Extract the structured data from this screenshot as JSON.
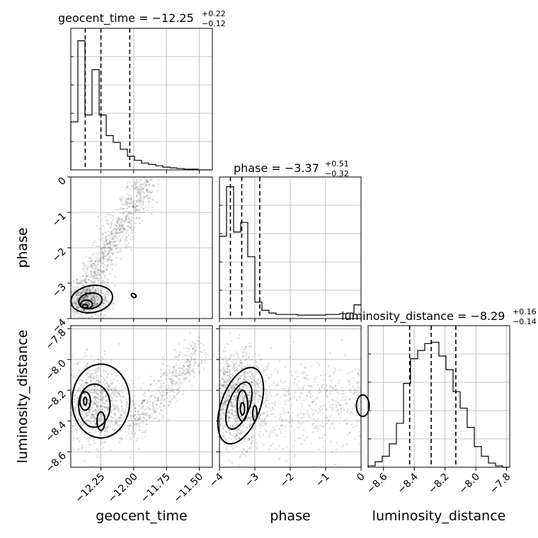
{
  "parameters": [
    "geocent_time",
    "phase",
    "luminosity_distance"
  ],
  "axis_labels": {
    "geocent_time": "geocent_time",
    "phase": "phase",
    "luminosity_distance": "luminosity_distance"
  },
  "titles": {
    "geocent_time": {
      "prefix": "geocent_time = −12.25",
      "plus": "+0.22",
      "minus": "−0.12"
    },
    "phase": {
      "prefix": "phase = −3.37",
      "plus": "+0.51",
      "minus": "−0.32"
    },
    "luminosity_distance": {
      "prefix": "luminosity_distance = −8.29",
      "plus": "+0.16",
      "minus": "−0.14"
    }
  },
  "tick_labels": {
    "geocent_time": [
      "−12.25",
      "−12.00",
      "−11.75",
      "−11.50"
    ],
    "phase": [
      "−4",
      "−3",
      "−2",
      "−1",
      "0"
    ],
    "luminosity_distance_x": [
      "−8.6",
      "−8.4",
      "−8.2",
      "−8.0",
      "−7.8"
    ],
    "luminosity_distance_y": [
      "−7.8",
      "−8.0",
      "−8.2",
      "−8.4",
      "−8.6"
    ]
  },
  "chart_data": {
    "type": "corner",
    "ranges": {
      "geocent_time": [
        -12.48,
        -11.4
      ],
      "phase": [
        -4.0,
        0.0
      ],
      "luminosity_distance": [
        -8.7,
        -7.78
      ]
    },
    "ticks": {
      "geocent_time": [
        -12.25,
        -12.0,
        -11.75,
        -11.5
      ],
      "phase": [
        -4,
        -3,
        -2,
        -1,
        0
      ],
      "luminosity_distance": [
        -8.6,
        -8.4,
        -8.2,
        -8.0,
        -7.8
      ]
    },
    "marginals": {
      "geocent_time": {
        "edges_start": -12.48,
        "bin_width": 0.054,
        "counts": [
          0.35,
          0.94,
          0.4,
          0.73,
          0.4,
          0.25,
          0.2,
          0.15,
          0.1,
          0.07,
          0.05,
          0.04,
          0.03,
          0.02,
          0.015,
          0.01,
          0.005,
          0.005,
          0.0,
          0.0
        ],
        "quantiles": [
          -12.37,
          -12.25,
          -12.03
        ]
      },
      "phase": {
        "edges_start": -4.0,
        "bin_width": 0.2,
        "counts": [
          0.6,
          0.96,
          0.63,
          0.7,
          0.45,
          0.12,
          0.06,
          0.04,
          0.03,
          0.03,
          0.03,
          0.025,
          0.025,
          0.025,
          0.025,
          0.03,
          0.03,
          0.035,
          0.04,
          0.1
        ],
        "quantiles": [
          -3.69,
          -3.37,
          -2.86
        ]
      },
      "luminosity_distance": {
        "edges_start": -8.7,
        "bin_width": 0.046,
        "counts": [
          0.01,
          0.04,
          0.08,
          0.17,
          0.32,
          0.61,
          0.79,
          0.85,
          0.9,
          0.91,
          0.81,
          0.71,
          0.55,
          0.43,
          0.29,
          0.15,
          0.08,
          0.03,
          0.01,
          0.0
        ],
        "quantiles": [
          -8.43,
          -8.29,
          -8.13
        ]
      }
    },
    "contour_levels": 4
  }
}
